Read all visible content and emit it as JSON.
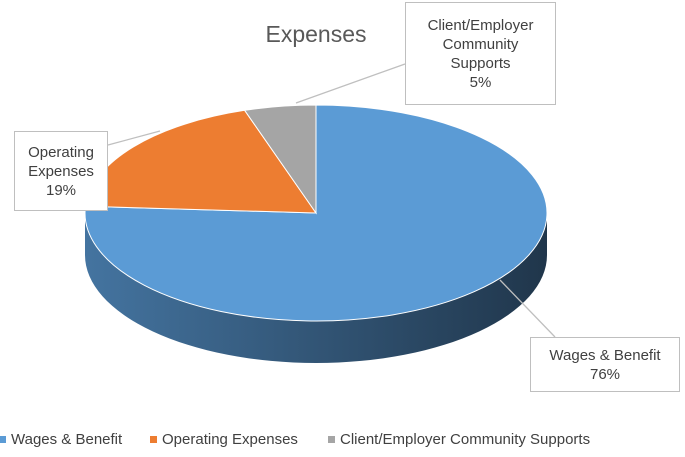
{
  "chart_data": {
    "type": "pie3d",
    "title": "Expenses",
    "categories": [
      "Wages & Benefit",
      "Operating Expenses",
      "Client/Employer Community Supports"
    ],
    "values": [
      76,
      19,
      5
    ],
    "value_labels": [
      "76%",
      "19%",
      "5%"
    ],
    "colors": [
      "#5b9bd5",
      "#ed7d31",
      "#a5a5a5"
    ],
    "legend": "bottom"
  }
}
